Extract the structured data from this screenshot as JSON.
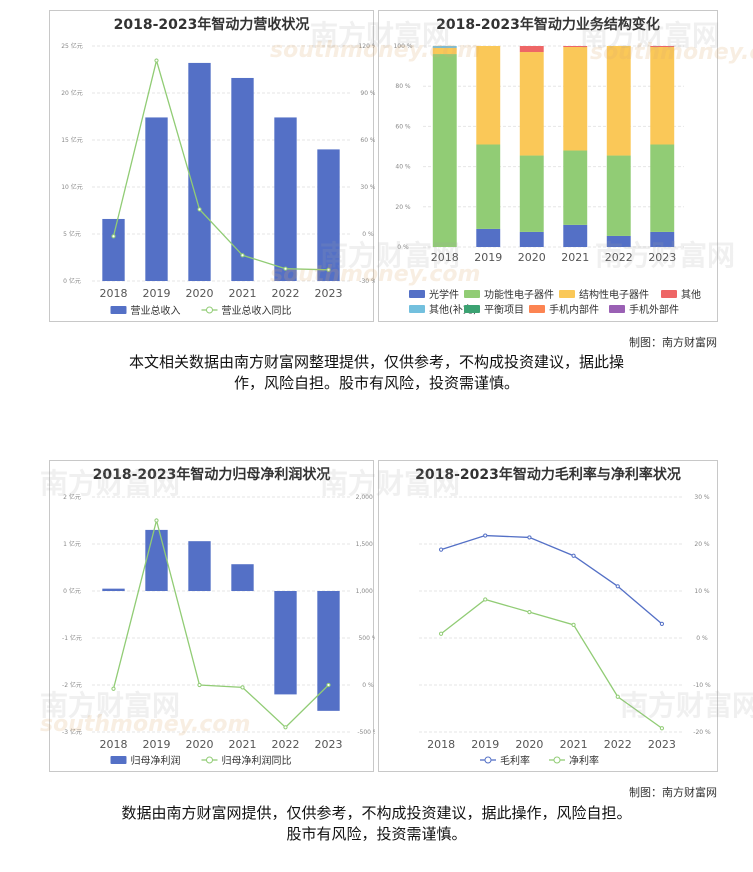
{
  "credit": "制图：南方财富网",
  "watermark": {
    "cn": "南方财富网",
    "en": "southmoney.com"
  },
  "disclaimer1": [
    "本文相关数据由南方财富网整理提供，仅供参考，不构成投资建议，据此操",
    "作，风险自担。股市有风险，投资需谨慎。"
  ],
  "disclaimer2": [
    "数据由南方财富网提供，仅供参考，不构成投资建议，据此操作，风险自担。",
    "股市有风险，投资需谨慎。"
  ],
  "chart_data": [
    {
      "type": "bar+line",
      "title": "2018-2023年智动力营收状况",
      "categories": [
        "2018",
        "2019",
        "2020",
        "2021",
        "2022",
        "2023"
      ],
      "y_left": {
        "ticks": [
          "0 亿元",
          "5 亿元",
          "10 亿元",
          "15 亿元",
          "20 亿元",
          "25 亿元"
        ],
        "range": [
          0,
          25
        ]
      },
      "y_right": {
        "ticks": [
          "-30 %",
          "0 %",
          "30 %",
          "60 %",
          "90 %",
          "120 %",
          "150 %",
          "180 %"
        ],
        "range": [
          -30,
          180
        ]
      },
      "series": [
        {
          "name": "营业总收入",
          "kind": "bar",
          "axis": "left",
          "color": "#5470c6",
          "values": [
            6.6,
            17.4,
            23.2,
            21.6,
            17.4,
            14.0
          ]
        },
        {
          "name": "营业总收入同比",
          "kind": "line",
          "axis": "right",
          "color": "#91cc75",
          "values": [
            10,
            167,
            34,
            -7,
            -19,
            -20
          ]
        }
      ]
    },
    {
      "type": "stacked-bar",
      "title": "2018-2023年智动力业务结构变化",
      "categories": [
        "2018",
        "2019",
        "2020",
        "2021",
        "2022",
        "2023"
      ],
      "y_left": {
        "ticks": [
          "0 %",
          "20 %",
          "40 %",
          "60 %",
          "80 %",
          "100 %"
        ],
        "range": [
          0,
          100
        ]
      },
      "series": [
        {
          "name": "光学件",
          "color": "#5470c6",
          "values": [
            0,
            9,
            7.5,
            11,
            5.5,
            7.5
          ]
        },
        {
          "name": "功能性电子器件",
          "color": "#91cc75",
          "values": [
            96,
            42,
            38,
            37,
            40,
            43.5
          ]
        },
        {
          "name": "结构性电子器件",
          "color": "#fac858",
          "values": [
            3,
            49,
            51.5,
            51.5,
            54.5,
            48.5
          ]
        },
        {
          "name": "其他",
          "color": "#ee6666",
          "values": [
            0,
            0,
            3,
            0.5,
            0,
            0.5
          ]
        },
        {
          "name": "其他(补充)",
          "color": "#73c0de",
          "values": [
            1,
            0,
            0,
            0,
            0,
            0
          ]
        },
        {
          "name": "平衡项目",
          "color": "#3ba272",
          "values": [
            0,
            0,
            0,
            0,
            0,
            0
          ]
        },
        {
          "name": "手机内部件",
          "color": "#fc8452",
          "values": [
            0,
            0,
            0,
            0,
            0,
            0
          ]
        },
        {
          "name": "手机外部件",
          "color": "#9a60b4",
          "values": [
            0,
            0,
            0,
            0,
            0,
            0
          ]
        }
      ]
    },
    {
      "type": "bar+line",
      "title": "2018-2023年智动力归母净利润状况",
      "categories": [
        "2018",
        "2019",
        "2020",
        "2021",
        "2022",
        "2023"
      ],
      "y_left": {
        "ticks": [
          "-3 亿元",
          "-2 亿元",
          "-1 亿元",
          "0 亿元",
          "1 亿元",
          "2 亿元"
        ],
        "range": [
          -3,
          2
        ]
      },
      "y_right": {
        "ticks": [
          "-500 %",
          "0 %",
          "500 %",
          "1,000 %",
          "1,500 %",
          "2,000 %"
        ],
        "range": [
          -500,
          2000
        ]
      },
      "series": [
        {
          "name": "归母净利润",
          "kind": "bar",
          "axis": "left",
          "color": "#5470c6",
          "values": [
            0.05,
            1.3,
            1.06,
            0.57,
            -2.2,
            -2.55
          ]
        },
        {
          "name": "归母净利润同比",
          "kind": "line",
          "axis": "right",
          "color": "#91cc75",
          "values": [
            -40,
            1750,
            0,
            -25,
            -450,
            0
          ]
        }
      ]
    },
    {
      "type": "line",
      "title": "2018-2023年智动力毛利率与净利率状况",
      "categories": [
        "2018",
        "2019",
        "2020",
        "2021",
        "2022",
        "2023"
      ],
      "y_right": {
        "ticks": [
          "-20 %",
          "-10 %",
          "0 %",
          "10 %",
          "20 %",
          "30 %"
        ],
        "range": [
          -20,
          30
        ]
      },
      "series": [
        {
          "name": "毛利率",
          "color": "#5470c6",
          "values": [
            18.8,
            21.8,
            21.4,
            17.5,
            11.0,
            3.0
          ]
        },
        {
          "name": "净利率",
          "color": "#91cc75",
          "values": [
            0.9,
            8.2,
            5.5,
            2.8,
            -12.5,
            -19.2
          ]
        }
      ]
    }
  ]
}
